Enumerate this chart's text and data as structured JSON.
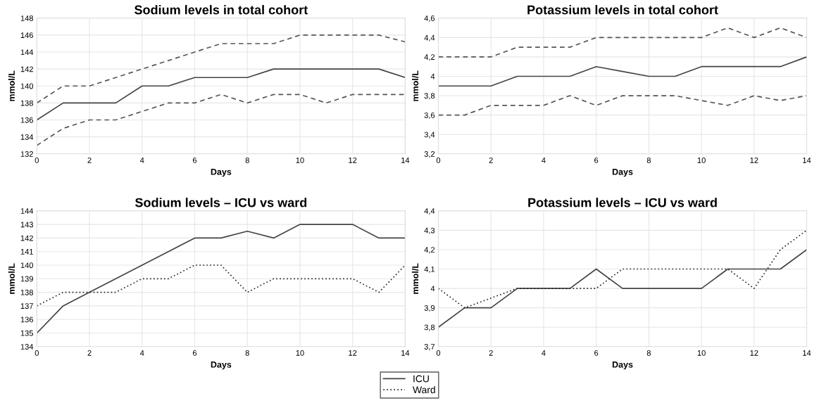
{
  "chart_data": [
    {
      "type": "line",
      "title": "Sodium levels in total cohort",
      "xlabel": "Days",
      "ylabel": "mmol/L",
      "x": [
        0,
        1,
        2,
        3,
        4,
        5,
        6,
        7,
        8,
        9,
        10,
        11,
        12,
        13,
        14
      ],
      "xlim": [
        0,
        14
      ],
      "xticks": [
        0,
        2,
        4,
        6,
        8,
        10,
        12,
        14
      ],
      "ylim": [
        132,
        148
      ],
      "yticks": [
        132,
        134,
        136,
        138,
        140,
        142,
        144,
        146,
        148
      ],
      "grid": true,
      "series": [
        {
          "color": "#555555",
          "line_style": "dashed",
          "values": [
            138,
            140,
            140,
            141,
            142,
            143,
            144,
            145,
            145,
            145,
            146,
            146,
            146,
            146,
            145.2
          ]
        },
        {
          "color": "#444444",
          "line_style": "solid",
          "values": [
            136,
            138,
            138,
            138,
            140,
            140,
            141,
            141,
            141,
            142,
            142,
            142,
            142,
            142,
            141
          ]
        },
        {
          "color": "#555555",
          "line_style": "dashed",
          "values": [
            133,
            135,
            136,
            136,
            137,
            138,
            138,
            139,
            138,
            139,
            139,
            138,
            139,
            139,
            139
          ]
        }
      ]
    },
    {
      "type": "line",
      "title": "Potassium levels in total cohort",
      "xlabel": "Days",
      "ylabel": "mmol/L",
      "x": [
        0,
        1,
        2,
        3,
        4,
        5,
        6,
        7,
        8,
        9,
        10,
        11,
        12,
        13,
        14
      ],
      "xlim": [
        0,
        14
      ],
      "xticks": [
        0,
        2,
        4,
        6,
        8,
        10,
        12,
        14
      ],
      "ylim": [
        3.2,
        4.6
      ],
      "yticks": [
        {
          "value": 3.2,
          "label": "3,2"
        },
        {
          "value": 3.4,
          "label": "3,4"
        },
        {
          "value": 3.6,
          "label": "3,6"
        },
        {
          "value": 3.8,
          "label": "3,8"
        },
        4,
        {
          "value": 4.2,
          "label": "4,2"
        },
        {
          "value": 4.4,
          "label": "4,4"
        },
        {
          "value": 4.6,
          "label": "4,6"
        }
      ],
      "grid": true,
      "series": [
        {
          "color": "#555555",
          "line_style": "dashed",
          "values": [
            4.2,
            4.2,
            4.2,
            4.3,
            4.3,
            4.3,
            4.4,
            4.4,
            4.4,
            4.4,
            4.4,
            4.5,
            4.4,
            4.5,
            4.4
          ]
        },
        {
          "color": "#444444",
          "line_style": "solid",
          "values": [
            3.9,
            3.9,
            3.9,
            4.0,
            4.0,
            4.0,
            4.1,
            4.05,
            4.0,
            4.0,
            4.1,
            4.1,
            4.1,
            4.1,
            4.2
          ]
        },
        {
          "color": "#555555",
          "line_style": "dashed",
          "values": [
            3.6,
            3.6,
            3.7,
            3.7,
            3.7,
            3.8,
            3.7,
            3.8,
            3.8,
            3.8,
            3.75,
            3.7,
            3.8,
            3.75,
            3.8
          ]
        }
      ]
    },
    {
      "type": "line",
      "title": "Sodium levels – ICU vs ward",
      "xlabel": "Days",
      "ylabel": "mmol/L",
      "x": [
        0,
        1,
        2,
        3,
        4,
        5,
        6,
        7,
        8,
        9,
        10,
        11,
        12,
        13,
        14
      ],
      "xlim": [
        0,
        14
      ],
      "xticks": [
        0,
        2,
        4,
        6,
        8,
        10,
        12,
        14
      ],
      "ylim": [
        134,
        144
      ],
      "yticks": [
        134,
        135,
        136,
        137,
        138,
        139,
        140,
        141,
        142,
        143,
        144
      ],
      "grid": true,
      "legend": "bottom",
      "series": [
        {
          "name": "ICU",
          "color": "#444444",
          "line_style": "solid",
          "values": [
            135,
            137,
            138,
            139,
            140,
            141,
            142,
            142,
            142.5,
            142,
            143,
            143,
            143,
            142,
            142
          ]
        },
        {
          "name": "Ward",
          "color": "#222222",
          "line_style": "dotted",
          "values": [
            137,
            138,
            138,
            138,
            139,
            139,
            140,
            140,
            138,
            139,
            139,
            139,
            139,
            138,
            140
          ]
        }
      ]
    },
    {
      "type": "line",
      "title": "Potassium levels – ICU vs ward",
      "xlabel": "Days",
      "ylabel": "mmol/L",
      "x": [
        0,
        1,
        2,
        3,
        4,
        5,
        6,
        7,
        8,
        9,
        10,
        11,
        12,
        13,
        14
      ],
      "xlim": [
        0,
        14
      ],
      "xticks": [
        0,
        2,
        4,
        6,
        8,
        10,
        12,
        14
      ],
      "ylim": [
        3.7,
        4.4
      ],
      "yticks": [
        {
          "value": 3.7,
          "label": "3,7"
        },
        {
          "value": 3.8,
          "label": "3,8"
        },
        {
          "value": 3.9,
          "label": "3,9"
        },
        4,
        {
          "value": 4.1,
          "label": "4,1"
        },
        {
          "value": 4.2,
          "label": "4,2"
        },
        {
          "value": 4.3,
          "label": "4,3"
        },
        {
          "value": 4.4,
          "label": "4,4"
        }
      ],
      "grid": true,
      "series": [
        {
          "color": "#444444",
          "line_style": "solid",
          "values": [
            3.8,
            3.9,
            3.9,
            4.0,
            4.0,
            4.0,
            4.1,
            4.0,
            4.0,
            4.0,
            4.0,
            4.1,
            4.1,
            4.1,
            4.2
          ]
        },
        {
          "color": "#222222",
          "line_style": "dotted",
          "values": [
            4.0,
            3.9,
            3.95,
            4.0,
            4.0,
            4.0,
            4.0,
            4.1,
            4.1,
            4.1,
            4.1,
            4.1,
            4.0,
            4.2,
            4.3
          ]
        }
      ]
    }
  ]
}
